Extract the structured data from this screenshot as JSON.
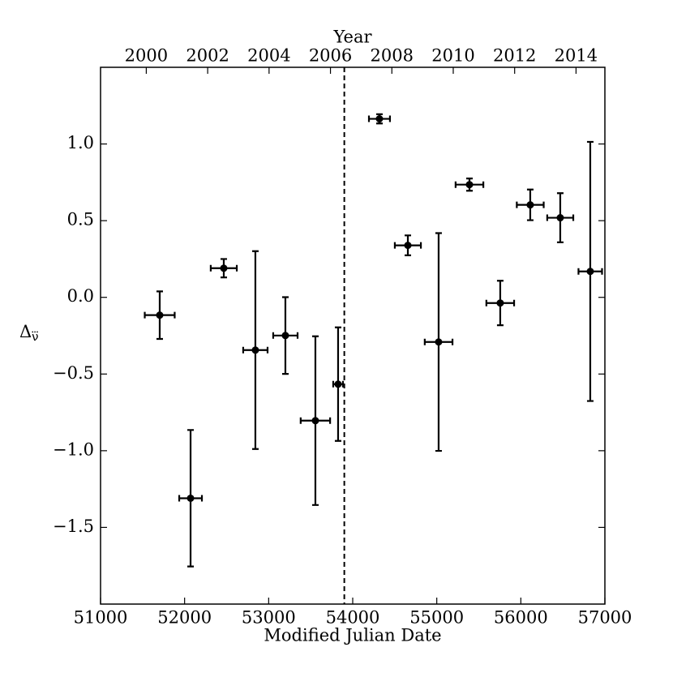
{
  "chart_data": {
    "type": "scatter",
    "xlabel": "Modified Julian Date",
    "x2label": "Year",
    "ylabel": {
      "main": "Δ",
      "sub": "ν⃛"
    },
    "xlim": [
      51000,
      57000
    ],
    "xticks": [
      51000,
      52000,
      53000,
      54000,
      55000,
      56000,
      57000
    ],
    "x2lim": [
      1998.51,
      2014.94
    ],
    "x2ticks": [
      2000,
      2002,
      2004,
      2006,
      2008,
      2010,
      2012,
      2014
    ],
    "ylim": [
      -2.0,
      1.5
    ],
    "yticks": [
      {
        "value": -1.5,
        "label": "−1.5"
      },
      {
        "value": -1.0,
        "label": "−1.0"
      },
      {
        "value": -0.5,
        "label": "−0.5"
      },
      {
        "value": 0.0,
        "label": "0.0"
      },
      {
        "value": 0.5,
        "label": "0.5"
      },
      {
        "value": 1.0,
        "label": "1.0"
      }
    ],
    "vline": {
      "x": 53900,
      "dashed": true,
      "color": "#000000"
    },
    "series": [
      {
        "color": "#000000",
        "x": [
          51704,
          52071,
          52466,
          52842,
          53199,
          53556,
          53826,
          54318,
          54656,
          55022,
          55389,
          55755,
          56112,
          56469,
          56826
        ],
        "y": [
          -0.116,
          -1.31,
          0.19,
          -0.344,
          -0.249,
          -0.804,
          -0.566,
          1.164,
          0.339,
          -0.291,
          0.735,
          -0.037,
          0.603,
          0.519,
          0.169
        ],
        "xerr": [
          178,
          135,
          155,
          145,
          145,
          175,
          58,
          125,
          155,
          165,
          165,
          165,
          160,
          155,
          140
        ],
        "yerr": [
          0.155,
          0.445,
          0.06,
          0.645,
          0.25,
          0.55,
          0.37,
          0.03,
          0.065,
          0.71,
          0.04,
          0.145,
          0.1,
          0.16,
          0.845
        ]
      }
    ]
  }
}
